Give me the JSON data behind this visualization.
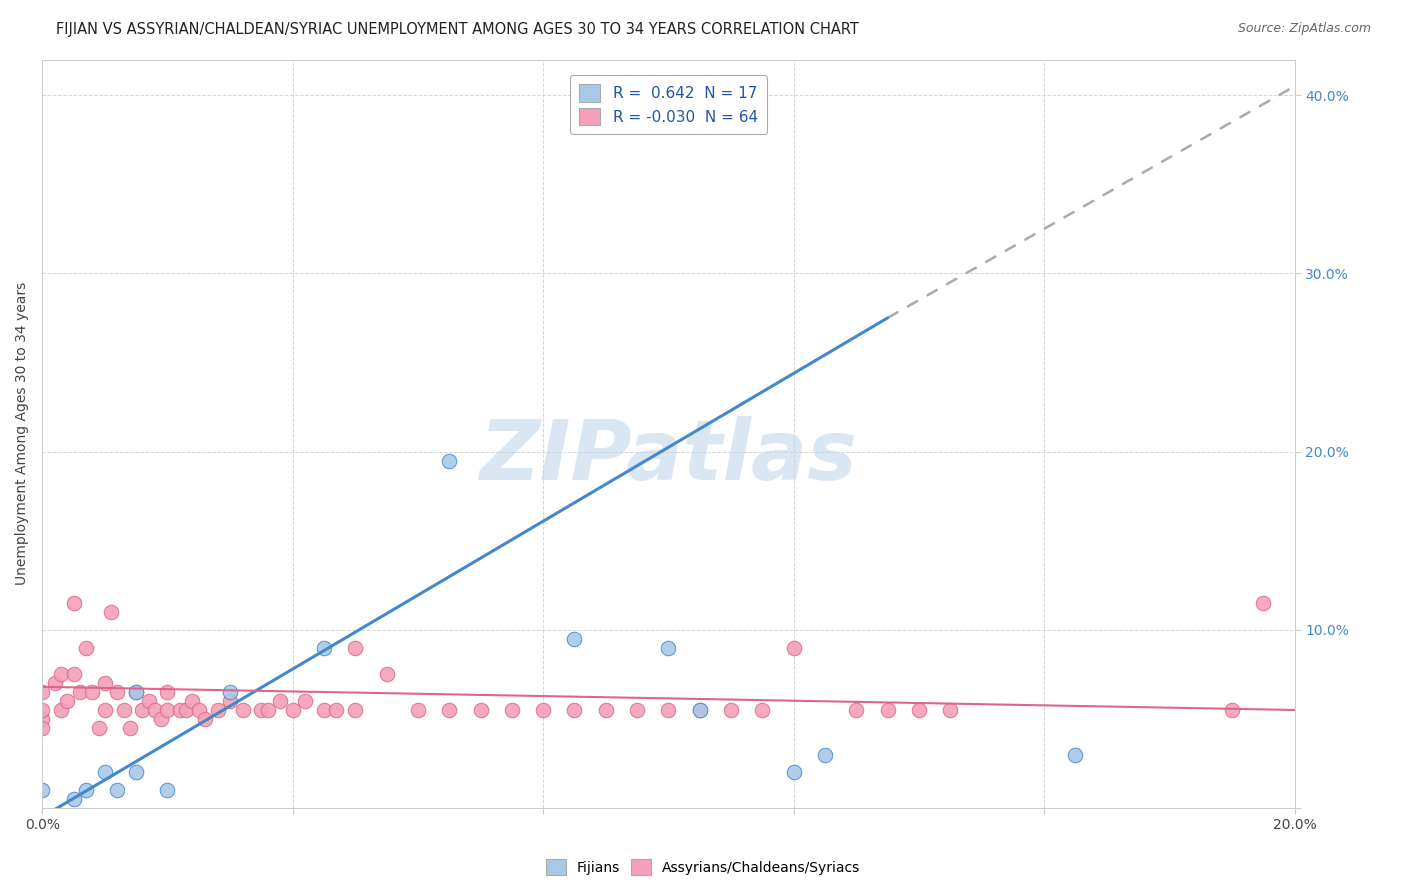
{
  "title": "FIJIAN VS ASSYRIAN/CHALDEAN/SYRIAC UNEMPLOYMENT AMONG AGES 30 TO 34 YEARS CORRELATION CHART",
  "source": "Source: ZipAtlas.com",
  "ylabel_label": "Unemployment Among Ages 30 to 34 years",
  "xlim": [
    0.0,
    0.2
  ],
  "ylim": [
    0.0,
    0.42
  ],
  "xticks": [
    0.0,
    0.04,
    0.08,
    0.12,
    0.16,
    0.2
  ],
  "xtick_labels": [
    "0.0%",
    "",
    "",
    "",
    "",
    "20.0%"
  ],
  "yticks": [
    0.0,
    0.1,
    0.2,
    0.3,
    0.4
  ],
  "ytick_labels": [
    "",
    "10.0%",
    "20.0%",
    "30.0%",
    "40.0%"
  ],
  "fijian_color": "#a8c8e8",
  "assyrian_color": "#f4a0b8",
  "trendline_fijian_color": "#4488cc",
  "trendline_assyrian_color": "#dd6688",
  "watermark": "ZIPatlas",
  "background_color": "#ffffff",
  "grid_color": "#cccccc",
  "fijian_points": [
    [
      0.0,
      0.01
    ],
    [
      0.005,
      0.005
    ],
    [
      0.007,
      0.01
    ],
    [
      0.01,
      0.02
    ],
    [
      0.012,
      0.01
    ],
    [
      0.015,
      0.02
    ],
    [
      0.015,
      0.065
    ],
    [
      0.02,
      0.01
    ],
    [
      0.03,
      0.065
    ],
    [
      0.045,
      0.09
    ],
    [
      0.065,
      0.195
    ],
    [
      0.085,
      0.095
    ],
    [
      0.1,
      0.09
    ],
    [
      0.105,
      0.055
    ],
    [
      0.12,
      0.02
    ],
    [
      0.125,
      0.03
    ],
    [
      0.165,
      0.03
    ]
  ],
  "assyrian_points": [
    [
      0.0,
      0.065
    ],
    [
      0.0,
      0.05
    ],
    [
      0.0,
      0.055
    ],
    [
      0.0,
      0.045
    ],
    [
      0.002,
      0.07
    ],
    [
      0.003,
      0.075
    ],
    [
      0.003,
      0.055
    ],
    [
      0.004,
      0.06
    ],
    [
      0.005,
      0.115
    ],
    [
      0.005,
      0.075
    ],
    [
      0.006,
      0.065
    ],
    [
      0.007,
      0.09
    ],
    [
      0.008,
      0.065
    ],
    [
      0.009,
      0.045
    ],
    [
      0.01,
      0.07
    ],
    [
      0.01,
      0.055
    ],
    [
      0.011,
      0.11
    ],
    [
      0.012,
      0.065
    ],
    [
      0.013,
      0.055
    ],
    [
      0.014,
      0.045
    ],
    [
      0.015,
      0.065
    ],
    [
      0.016,
      0.055
    ],
    [
      0.017,
      0.06
    ],
    [
      0.018,
      0.055
    ],
    [
      0.019,
      0.05
    ],
    [
      0.02,
      0.065
    ],
    [
      0.02,
      0.055
    ],
    [
      0.022,
      0.055
    ],
    [
      0.023,
      0.055
    ],
    [
      0.024,
      0.06
    ],
    [
      0.025,
      0.055
    ],
    [
      0.026,
      0.05
    ],
    [
      0.028,
      0.055
    ],
    [
      0.03,
      0.06
    ],
    [
      0.032,
      0.055
    ],
    [
      0.035,
      0.055
    ],
    [
      0.036,
      0.055
    ],
    [
      0.038,
      0.06
    ],
    [
      0.04,
      0.055
    ],
    [
      0.042,
      0.06
    ],
    [
      0.045,
      0.055
    ],
    [
      0.047,
      0.055
    ],
    [
      0.05,
      0.055
    ],
    [
      0.05,
      0.09
    ],
    [
      0.055,
      0.075
    ],
    [
      0.06,
      0.055
    ],
    [
      0.065,
      0.055
    ],
    [
      0.07,
      0.055
    ],
    [
      0.075,
      0.055
    ],
    [
      0.08,
      0.055
    ],
    [
      0.085,
      0.055
    ],
    [
      0.09,
      0.055
    ],
    [
      0.095,
      0.055
    ],
    [
      0.1,
      0.055
    ],
    [
      0.105,
      0.055
    ],
    [
      0.11,
      0.055
    ],
    [
      0.115,
      0.055
    ],
    [
      0.12,
      0.09
    ],
    [
      0.13,
      0.055
    ],
    [
      0.135,
      0.055
    ],
    [
      0.14,
      0.055
    ],
    [
      0.145,
      0.055
    ],
    [
      0.19,
      0.055
    ],
    [
      0.195,
      0.115
    ]
  ],
  "fijian_trend": [
    0.0,
    0.2,
    -0.01,
    0.395
  ],
  "assyrian_trend": [
    0.0,
    0.2,
    0.065,
    0.045
  ],
  "dashed_trend": [
    0.135,
    0.2,
    0.27,
    0.4
  ]
}
